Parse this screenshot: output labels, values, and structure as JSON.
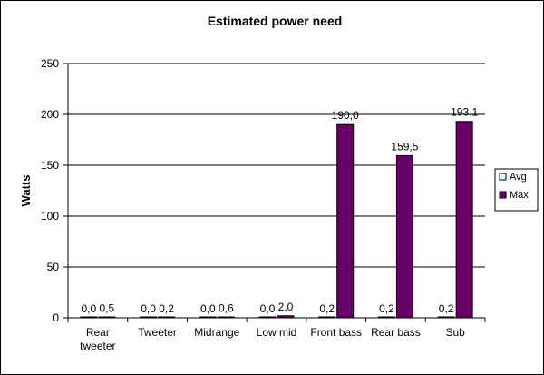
{
  "chart_data": {
    "type": "bar",
    "title": "Estimated power need",
    "ylabel": "Watts",
    "xlabel": "",
    "ylim": [
      0,
      250
    ],
    "yticks": [
      0,
      50,
      100,
      150,
      200,
      250
    ],
    "grid": true,
    "legend_position": "right",
    "categories": [
      [
        "Rear",
        "tweeter"
      ],
      [
        "Tweeter"
      ],
      [
        "Midrange"
      ],
      [
        "Low mid"
      ],
      [
        "Front bass"
      ],
      [
        "Rear bass"
      ],
      [
        "Sub"
      ]
    ],
    "series": [
      {
        "name": "Avg",
        "color": "#ccffff",
        "values": [
          0.0,
          0.0,
          0.0,
          0.0,
          0.2,
          0.2,
          0.2
        ],
        "labels": [
          "0,0",
          "0,0",
          "0,0",
          "0,0",
          "0,2",
          "0,2",
          "0,2"
        ]
      },
      {
        "name": "Max",
        "color": "#660066",
        "values": [
          0.5,
          0.2,
          0.6,
          2.0,
          190.0,
          159.5,
          193.1
        ],
        "labels": [
          "0,5",
          "0,2",
          "0,6",
          "2,0",
          "190,0",
          "159,5",
          "193.1"
        ]
      }
    ]
  }
}
